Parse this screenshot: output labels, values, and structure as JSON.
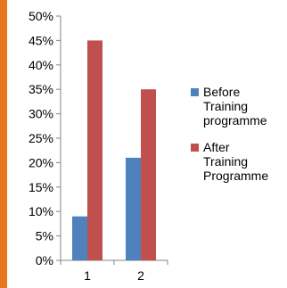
{
  "chart_data": {
    "type": "bar",
    "categories": [
      "1",
      "2"
    ],
    "series": [
      {
        "name": "Before Training programme",
        "values": [
          9,
          21
        ],
        "color": "#4f81bd"
      },
      {
        "name": "After Training Programme",
        "values": [
          45,
          35
        ],
        "color": "#c0504d"
      }
    ],
    "yticks": [
      "0%",
      "5%",
      "10%",
      "15%",
      "20%",
      "25%",
      "30%",
      "35%",
      "40%",
      "45%",
      "50%"
    ],
    "ylim": [
      0,
      50
    ],
    "grid": false,
    "legend_position": "right",
    "legend_lines": [
      [
        "Before",
        "Training",
        "programme"
      ],
      [
        "After",
        "Training",
        "Programme"
      ]
    ],
    "title": "",
    "xlabel": "",
    "ylabel": ""
  },
  "colors": {
    "accent_border": "#e8781e",
    "axis": "#868686"
  }
}
